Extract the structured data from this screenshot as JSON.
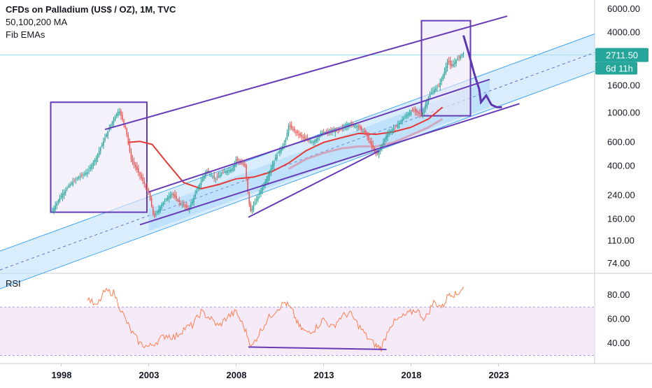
{
  "header": {
    "title": "CFDs on Palladium (US$ / OZ), 1M, TVC",
    "line2": "50,100,200 MA",
    "line3": "Fib EMAs"
  },
  "price_badge": {
    "value": "2711.50",
    "countdown": "6d 11h"
  },
  "rsi_label": "RSI",
  "colors": {
    "up": "#26a69a",
    "down": "#ef5350",
    "channel_fill": "#bbdefb",
    "channel_line": "#42a5f5",
    "box_stroke": "#673ab7",
    "box_fill": "#ede7f6",
    "ema_red": "#e53935",
    "ema_pink": "#d1a7c0",
    "rsi_line": "#ff7f50",
    "rsi_band": "#f3e5f5",
    "badge": "#26a69a"
  },
  "chart_data": [
    {
      "type": "candlestick",
      "title": "CFDs on Palladium (US$ / OZ), 1M, TVC",
      "y_scale": "log",
      "ylim": [
        65,
        7000
      ],
      "y_ticks": [
        "6000.00",
        "4000.00",
        "2711.50",
        "1600.00",
        "1000.00",
        "600.00",
        "400.00",
        "240.00",
        "160.00",
        "110.00",
        "74.00"
      ],
      "x_ticks": [
        "1998",
        "2003",
        "2008",
        "2013",
        "2018",
        "2023"
      ],
      "xlim": [
        1994.5,
        2028.5
      ],
      "series": [
        {
          "name": "Palladium",
          "points": [
            [
              1997.5,
              185
            ],
            [
              1998.0,
              240
            ],
            [
              1998.5,
              290
            ],
            [
              1999.0,
              330
            ],
            [
              1999.5,
              360
            ],
            [
              2000.0,
              460
            ],
            [
              2000.5,
              650
            ],
            [
              2001.0,
              900
            ],
            [
              2001.3,
              1050
            ],
            [
              2001.7,
              750
            ],
            [
              2002.0,
              450
            ],
            [
              2002.5,
              340
            ],
            [
              2003.0,
              250
            ],
            [
              2003.3,
              165
            ],
            [
              2003.8,
              210
            ],
            [
              2004.3,
              250
            ],
            [
              2004.8,
              210
            ],
            [
              2005.3,
              190
            ],
            [
              2005.8,
              270
            ],
            [
              2006.3,
              370
            ],
            [
              2006.8,
              320
            ],
            [
              2007.3,
              360
            ],
            [
              2007.8,
              380
            ],
            [
              2008.0,
              450
            ],
            [
              2008.5,
              400
            ],
            [
              2008.8,
              180
            ],
            [
              2009.2,
              230
            ],
            [
              2009.8,
              330
            ],
            [
              2010.3,
              480
            ],
            [
              2010.8,
              600
            ],
            [
              2011.0,
              800
            ],
            [
              2011.5,
              700
            ],
            [
              2011.9,
              640
            ],
            [
              2012.4,
              600
            ],
            [
              2012.9,
              700
            ],
            [
              2013.4,
              720
            ],
            [
              2013.9,
              740
            ],
            [
              2014.4,
              820
            ],
            [
              2014.9,
              800
            ],
            [
              2015.4,
              700
            ],
            [
              2015.9,
              520
            ],
            [
              2016.1,
              490
            ],
            [
              2016.6,
              680
            ],
            [
              2017.1,
              780
            ],
            [
              2017.6,
              920
            ],
            [
              2018.1,
              1050
            ],
            [
              2018.6,
              960
            ],
            [
              2019.1,
              1400
            ],
            [
              2019.6,
              1600
            ],
            [
              2019.9,
              2000
            ],
            [
              2020.1,
              2500
            ],
            [
              2020.3,
              2200
            ],
            [
              2020.6,
              2500
            ],
            [
              2021.0,
              2800
            ]
          ]
        },
        {
          "name": "Projection",
          "points": [
            [
              2021.0,
              3800
            ],
            [
              2021.3,
              2800
            ],
            [
              2021.6,
              2000
            ],
            [
              2021.9,
              1500
            ],
            [
              2022.0,
              1200
            ],
            [
              2022.3,
              1350
            ],
            [
              2022.6,
              1150
            ],
            [
              2022.9,
              1100
            ],
            [
              2023.2,
              1100
            ]
          ]
        }
      ],
      "annotations": [
        "rising channel",
        "resistance trend line",
        "support trend line",
        "two boxes"
      ]
    },
    {
      "type": "line",
      "title": "RSI",
      "ylim": [
        28,
        95
      ],
      "y_ticks": [
        "80.00",
        "60.00",
        "40.00"
      ],
      "overbought": 70,
      "oversold": 30,
      "series": [
        {
          "name": "RSI",
          "points": [
            [
              1999.5,
              78
            ],
            [
              2000.0,
              70
            ],
            [
              2000.5,
              83
            ],
            [
              2001.0,
              82
            ],
            [
              2001.5,
              65
            ],
            [
              2002.0,
              50
            ],
            [
              2002.5,
              40
            ],
            [
              2003.0,
              37
            ],
            [
              2003.5,
              42
            ],
            [
              2004.0,
              47
            ],
            [
              2004.5,
              45
            ],
            [
              2005.0,
              52
            ],
            [
              2005.5,
              55
            ],
            [
              2006.0,
              66
            ],
            [
              2006.5,
              61
            ],
            [
              2007.0,
              54
            ],
            [
              2007.5,
              62
            ],
            [
              2008.0,
              66
            ],
            [
              2008.5,
              52
            ],
            [
              2008.9,
              37
            ],
            [
              2009.3,
              48
            ],
            [
              2009.8,
              60
            ],
            [
              2010.3,
              68
            ],
            [
              2010.8,
              74
            ],
            [
              2011.2,
              67
            ],
            [
              2011.6,
              54
            ],
            [
              2012.0,
              49
            ],
            [
              2012.5,
              52
            ],
            [
              2013.0,
              60
            ],
            [
              2013.5,
              53
            ],
            [
              2014.0,
              62
            ],
            [
              2014.5,
              65
            ],
            [
              2015.0,
              55
            ],
            [
              2015.5,
              45
            ],
            [
              2016.0,
              38
            ],
            [
              2016.3,
              36
            ],
            [
              2016.8,
              55
            ],
            [
              2017.3,
              60
            ],
            [
              2017.8,
              64
            ],
            [
              2018.3,
              68
            ],
            [
              2018.8,
              60
            ],
            [
              2019.3,
              74
            ],
            [
              2019.8,
              70
            ],
            [
              2020.2,
              82
            ],
            [
              2020.6,
              80
            ],
            [
              2021.0,
              87
            ]
          ]
        }
      ]
    }
  ]
}
